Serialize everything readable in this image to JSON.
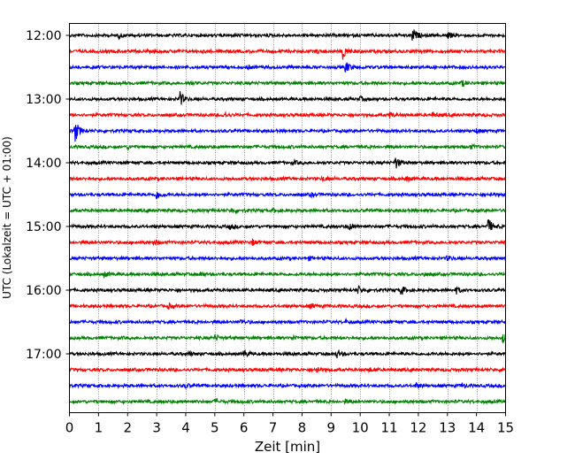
{
  "chart_data": {
    "type": "line",
    "title": "",
    "xlabel": "Zeit  [min]",
    "ylabel": "UTC (Lokalzeit = UTC + 01:00)",
    "xlim": [
      0,
      15
    ],
    "x_ticks": [
      0,
      1,
      2,
      3,
      4,
      5,
      6,
      7,
      8,
      9,
      10,
      11,
      12,
      13,
      14,
      15
    ],
    "x_tick_labels": [
      "0",
      "1",
      "2",
      "3",
      "4",
      "5",
      "6",
      "7",
      "8",
      "9",
      "10",
      "11",
      "12",
      "13",
      "14",
      "15"
    ],
    "y_ticks": [
      "12:00",
      "13:00",
      "14:00",
      "15:00",
      "16:00",
      "17:00"
    ],
    "grid_x": true,
    "trace_colors": [
      "#000000",
      "#ff0000",
      "#0000ff",
      "#008000"
    ],
    "traces": [
      {
        "start": "12:00",
        "events": [
          {
            "t": 1.7,
            "a": 0.25
          },
          {
            "t": 11.8,
            "a": 0.9
          },
          {
            "t": 13.0,
            "a": 0.4
          }
        ]
      },
      {
        "start": "12:15",
        "events": [
          {
            "t": 9.4,
            "a": 1.0
          },
          {
            "t": 8.5,
            "a": 0.2
          }
        ]
      },
      {
        "start": "12:30",
        "events": [
          {
            "t": 9.5,
            "a": 0.7
          },
          {
            "t": 6.1,
            "a": 0.2
          }
        ]
      },
      {
        "start": "12:45",
        "events": [
          {
            "t": 13.5,
            "a": 0.35
          },
          {
            "t": 4.1,
            "a": 0.2
          }
        ]
      },
      {
        "start": "13:00",
        "events": [
          {
            "t": 3.8,
            "a": 0.9
          },
          {
            "t": 10.0,
            "a": 0.25
          }
        ]
      },
      {
        "start": "13:15",
        "events": [
          {
            "t": 5.3,
            "a": 0.4
          },
          {
            "t": 11.0,
            "a": 0.35
          },
          {
            "t": 12.5,
            "a": 0.3
          }
        ]
      },
      {
        "start": "13:30",
        "events": [
          {
            "t": 0.2,
            "a": 1.3
          },
          {
            "t": 14.0,
            "a": 0.25
          }
        ]
      },
      {
        "start": "13:45",
        "events": [
          {
            "t": 2.0,
            "a": 0.2
          },
          {
            "t": 13.8,
            "a": 0.2
          }
        ]
      },
      {
        "start": "14:00",
        "events": [
          {
            "t": 11.2,
            "a": 0.8
          },
          {
            "t": 7.7,
            "a": 0.25
          }
        ]
      },
      {
        "start": "14:15",
        "events": [
          {
            "t": 8.7,
            "a": 0.3
          },
          {
            "t": 11.6,
            "a": 0.25
          }
        ]
      },
      {
        "start": "14:30",
        "events": [
          {
            "t": 3.0,
            "a": 0.5
          },
          {
            "t": 8.3,
            "a": 0.2
          },
          {
            "t": 14.5,
            "a": 0.2
          }
        ]
      },
      {
        "start": "14:45",
        "events": [
          {
            "t": 5.6,
            "a": 0.25
          },
          {
            "t": 7.0,
            "a": 0.2
          }
        ]
      },
      {
        "start": "15:00",
        "events": [
          {
            "t": 14.4,
            "a": 1.0
          },
          {
            "t": 9.6,
            "a": 0.35
          },
          {
            "t": 5.5,
            "a": 0.3
          }
        ]
      },
      {
        "start": "15:15",
        "events": [
          {
            "t": 6.3,
            "a": 0.35
          },
          {
            "t": 2.9,
            "a": 0.25
          }
        ]
      },
      {
        "start": "15:30",
        "events": [
          {
            "t": 13.0,
            "a": 0.3
          },
          {
            "t": 8.2,
            "a": 0.2
          }
        ]
      },
      {
        "start": "15:45",
        "events": [
          {
            "t": 1.2,
            "a": 0.3
          },
          {
            "t": 4.5,
            "a": 0.25
          },
          {
            "t": 12.2,
            "a": 0.2
          }
        ]
      },
      {
        "start": "16:00",
        "events": [
          {
            "t": 9.9,
            "a": 0.6
          },
          {
            "t": 11.4,
            "a": 0.6
          },
          {
            "t": 13.3,
            "a": 0.4
          }
        ]
      },
      {
        "start": "16:15",
        "events": [
          {
            "t": 3.4,
            "a": 0.3
          },
          {
            "t": 8.3,
            "a": 0.3
          }
        ]
      },
      {
        "start": "16:30",
        "events": [
          {
            "t": 5.9,
            "a": 0.3
          },
          {
            "t": 9.5,
            "a": 0.2
          }
        ]
      },
      {
        "start": "16:45",
        "events": [
          {
            "t": 14.9,
            "a": 0.55
          },
          {
            "t": 5.0,
            "a": 0.35
          },
          {
            "t": 7.7,
            "a": 0.3
          }
        ]
      },
      {
        "start": "17:00",
        "events": [
          {
            "t": 6.0,
            "a": 0.45
          },
          {
            "t": 9.2,
            "a": 0.45
          },
          {
            "t": 4.1,
            "a": 0.25
          }
        ]
      },
      {
        "start": "17:15",
        "events": [
          {
            "t": 8.5,
            "a": 0.4
          },
          {
            "t": 14.9,
            "a": 0.35
          },
          {
            "t": 10.3,
            "a": 0.25
          }
        ]
      },
      {
        "start": "17:30",
        "events": [
          {
            "t": 11.9,
            "a": 0.35
          },
          {
            "t": 13.5,
            "a": 0.3
          },
          {
            "t": 4.0,
            "a": 0.2
          }
        ]
      },
      {
        "start": "17:45",
        "events": [
          {
            "t": 5.0,
            "a": 0.2
          },
          {
            "t": 9.5,
            "a": 0.2
          }
        ]
      }
    ]
  }
}
